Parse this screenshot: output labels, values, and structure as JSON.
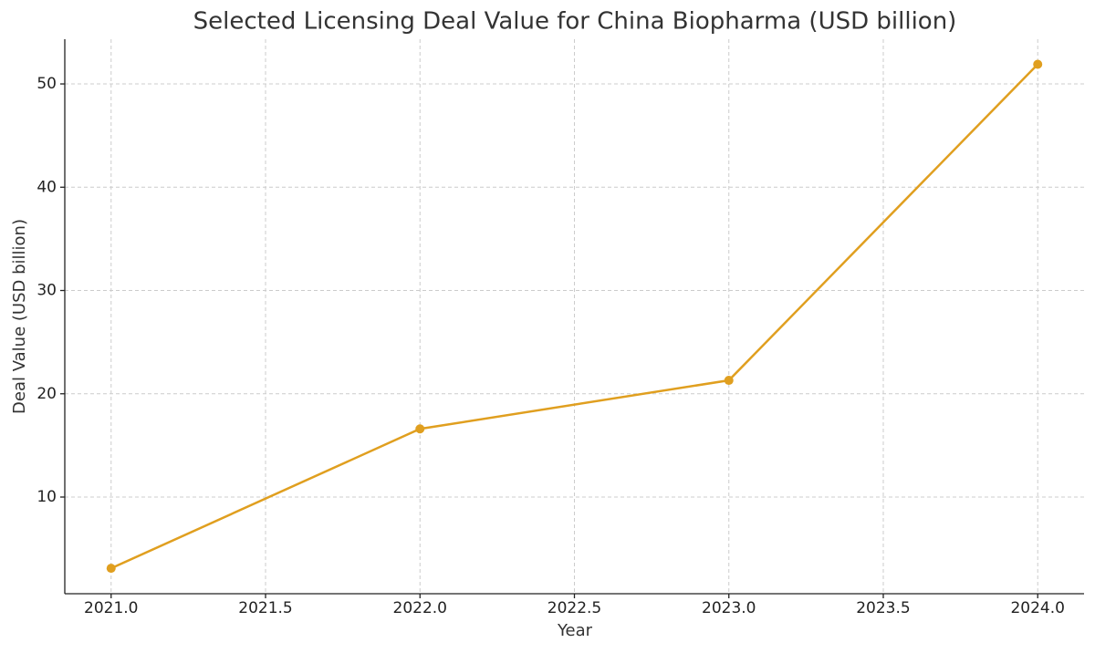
{
  "chart_data": {
    "type": "line",
    "title": "Selected Licensing Deal Value for China Biopharma (USD billion)",
    "x_label": "Year",
    "y_label": "Deal Value (USD billion)",
    "x": [
      2021,
      2022,
      2023,
      2024
    ],
    "series": [
      {
        "name": "Deal Value",
        "color": "#e09f1f",
        "values": [
          3.1,
          16.6,
          21.3,
          51.9
        ]
      }
    ],
    "xlim": [
      2020.85,
      2024.15
    ],
    "xticks": [
      {
        "value": 2021,
        "label": "2021.0"
      },
      {
        "value": 2021.5,
        "label": "2021.5"
      },
      {
        "value": 2022,
        "label": "2022.0"
      },
      {
        "value": 2022.5,
        "label": "2022.5"
      },
      {
        "value": 2023,
        "label": "2023.0"
      },
      {
        "value": 2023.5,
        "label": "2023.5"
      },
      {
        "value": 2024,
        "label": "2024.0"
      }
    ],
    "ylim": [
      0.64,
      54.33
    ],
    "yticks": [
      10,
      20,
      30,
      40,
      50
    ],
    "grid": true
  }
}
